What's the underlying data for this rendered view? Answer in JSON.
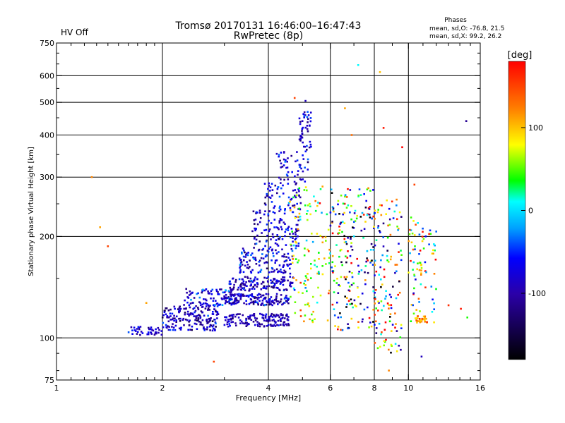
{
  "chart_data": {
    "type": "scatter",
    "title_line1": "Tromsø 20170131 16:46:00–16:47:43",
    "title_line2": "RwPretec (8p)",
    "status_label": "HV Off",
    "status_color": "#cc0000",
    "stats": {
      "heading": "Phases",
      "line_o": "mean, sd,O: -76.8, 21.5",
      "line_x": "mean, sd,X:  99.2, 26.2"
    },
    "xlabel": "Frequency [MHz]",
    "ylabel": "Stationary phase Virtual Height [km]",
    "x_scale": "log",
    "y_scale": "log",
    "xlim": [
      1,
      16
    ],
    "ylim": [
      75,
      750
    ],
    "x_ticks": [
      1,
      2,
      4,
      6,
      8,
      10,
      16
    ],
    "y_ticks": [
      75,
      100,
      200,
      300,
      400,
      500,
      600,
      750
    ],
    "x_gridlines": [
      2,
      4,
      6,
      8,
      10
    ],
    "y_gridlines": [
      100,
      200,
      300,
      400,
      500,
      600
    ],
    "colorbar": {
      "label": "[deg]",
      "ticks": [
        100,
        0,
        -100
      ],
      "range": [
        -180,
        180
      ]
    },
    "bands": [
      {
        "f": [
          1.6,
          2.0
        ],
        "h": [
          102,
          108
        ],
        "phase": -85,
        "spread": 20,
        "n": 40
      },
      {
        "f": [
          2.0,
          2.9
        ],
        "h": [
          105,
          125
        ],
        "phase": -90,
        "spread": 25,
        "n": 180
      },
      {
        "f": [
          2.3,
          3.2
        ],
        "h": [
          125,
          140
        ],
        "phase": -70,
        "spread": 30,
        "n": 90
      },
      {
        "f": [
          3.0,
          4.6
        ],
        "h": [
          108,
          118
        ],
        "phase": -95,
        "spread": 20,
        "n": 150
      },
      {
        "f": [
          3.0,
          4.6
        ],
        "h": [
          125,
          135
        ],
        "phase": -90,
        "spread": 25,
        "n": 150
      },
      {
        "f": [
          3.1,
          4.7
        ],
        "h": [
          138,
          152
        ],
        "phase": -85,
        "spread": 25,
        "n": 140
      },
      {
        "f": [
          3.3,
          4.7
        ],
        "h": [
          155,
          185
        ],
        "phase": -80,
        "spread": 30,
        "n": 120
      },
      {
        "f": [
          3.6,
          4.9
        ],
        "h": [
          185,
          240
        ],
        "phase": -80,
        "spread": 25,
        "n": 110
      },
      {
        "f": [
          3.9,
          5.0
        ],
        "h": [
          240,
          290
        ],
        "phase": -75,
        "spread": 25,
        "n": 60
      },
      {
        "f": [
          4.2,
          5.2
        ],
        "h": [
          290,
          360
        ],
        "phase": -75,
        "spread": 25,
        "n": 50
      },
      {
        "f": [
          4.9,
          5.3
        ],
        "h": [
          360,
          470
        ],
        "phase": -70,
        "spread": 25,
        "n": 45
      },
      {
        "f": [
          4.6,
          6.0
        ],
        "h": [
          110,
          290
        ],
        "phase": 60,
        "spread": 50,
        "n": 120
      },
      {
        "f": [
          6.0,
          8.0
        ],
        "h": [
          105,
          280
        ],
        "phase": 0,
        "spread": 110,
        "n": 200
      },
      {
        "f": [
          8.0,
          9.6
        ],
        "h": [
          90,
          260
        ],
        "phase": 20,
        "spread": 110,
        "n": 130
      },
      {
        "f": [
          10.0,
          12.0
        ],
        "h": [
          110,
          230
        ],
        "phase": 60,
        "spread": 90,
        "n": 80
      },
      {
        "f": [
          10.4,
          11.4
        ],
        "h": [
          111,
          116
        ],
        "phase": 120,
        "spread": 25,
        "n": 25
      }
    ],
    "isolated_points": [
      {
        "x": 1.26,
        "y": 300,
        "phase": 120
      },
      {
        "x": 1.33,
        "y": 213,
        "phase": 110
      },
      {
        "x": 1.4,
        "y": 187,
        "phase": 150
      },
      {
        "x": 1.8,
        "y": 127,
        "phase": 110
      },
      {
        "x": 2.8,
        "y": 85,
        "phase": 150
      },
      {
        "x": 4.75,
        "y": 515,
        "phase": 150
      },
      {
        "x": 5.1,
        "y": 505,
        "phase": -90
      },
      {
        "x": 6.6,
        "y": 480,
        "phase": 110
      },
      {
        "x": 6.9,
        "y": 400,
        "phase": 130
      },
      {
        "x": 7.2,
        "y": 645,
        "phase": 10
      },
      {
        "x": 8.3,
        "y": 615,
        "phase": 100
      },
      {
        "x": 8.5,
        "y": 420,
        "phase": 170
      },
      {
        "x": 9.6,
        "y": 368,
        "phase": 180
      },
      {
        "x": 10.4,
        "y": 285,
        "phase": 150
      },
      {
        "x": 14.6,
        "y": 440,
        "phase": -110
      },
      {
        "x": 13.0,
        "y": 125,
        "phase": 160
      },
      {
        "x": 14.1,
        "y": 122,
        "phase": 170
      },
      {
        "x": 14.7,
        "y": 115,
        "phase": 40
      },
      {
        "x": 8.8,
        "y": 80,
        "phase": 120
      },
      {
        "x": 10.9,
        "y": 88,
        "phase": -90
      }
    ]
  }
}
